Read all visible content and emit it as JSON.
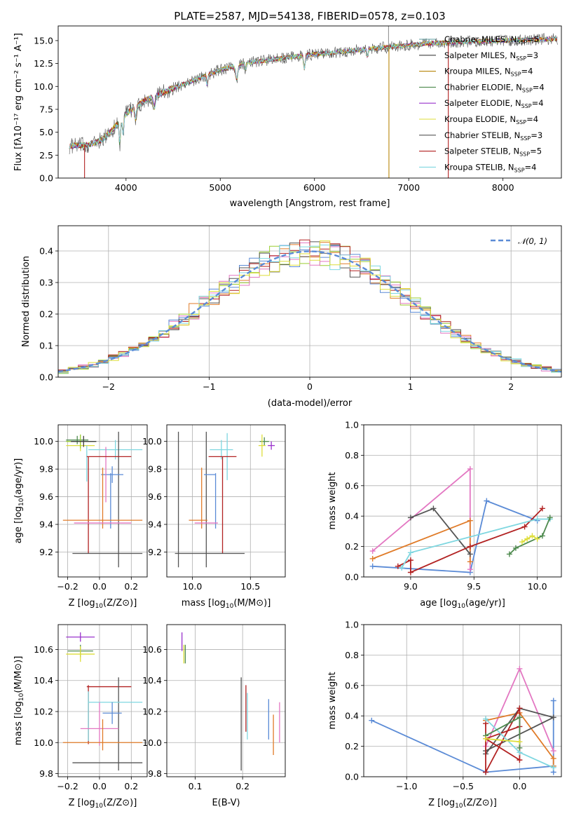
{
  "colors": {
    "ChM": "#5f9ea0",
    "SaM": "#3f3f3f",
    "KrM": "#b8860b",
    "ChE": "#4e8a4e",
    "SaE": "#9932cc",
    "KrE": "#dede3a",
    "ChS": "#555555",
    "SaS": "#b22222",
    "KrS": "#7fd7e0",
    "gauss": "#5b8bd6"
  },
  "chart_data": [
    {
      "id": "spectrum",
      "type": "line",
      "title": "PLATE=2587, MJD=54138, FIBERID=0578, z=0.103",
      "xlabel": "wavelength [Angstrom, rest frame]",
      "ylabel": "Flux [fλ10⁻¹⁷ erg cm⁻² s⁻¹ A⁻¹]",
      "xlim": [
        3280,
        8620
      ],
      "ylim": [
        0,
        16.6
      ],
      "xticks": [
        4000,
        5000,
        6000,
        7000,
        8000
      ],
      "yticks": [
        0.0,
        2.5,
        5.0,
        7.5,
        10.0,
        12.5,
        15.0
      ],
      "grid": false,
      "legend_position": "top-right",
      "continuum_x": [
        3400,
        3600,
        3750,
        3850,
        4000,
        4200,
        4500,
        4800,
        5000,
        5300,
        5600,
        5900,
        6200,
        6500,
        6800,
        7100,
        7400,
        7700,
        8000,
        8300,
        8580
      ],
      "continuum_y": [
        3.5,
        3.6,
        4.2,
        5.2,
        7.0,
        8.5,
        9.8,
        11.0,
        11.8,
        12.6,
        13.0,
        13.4,
        13.7,
        14.0,
        14.3,
        14.6,
        14.8,
        14.9,
        15.0,
        15.1,
        15.2
      ],
      "series": [
        {
          "name": "Chrabrier MILES, N_SSP=5",
          "label_main": "Chabrier MILES, N",
          "label_sub": "SSP",
          "label_tail": "=5",
          "color_key": "ChM"
        },
        {
          "name": "Salpeter MILES, N_SSP=3",
          "label_main": "Salpeter MILES, N",
          "label_sub": "SSP",
          "label_tail": "=3",
          "color_key": "SaM"
        },
        {
          "name": "Kroupa MILES, N_SSP=4",
          "label_main": "Kroupa MILES, N",
          "label_sub": "SSP",
          "label_tail": "=4",
          "color_key": "KrM"
        },
        {
          "name": "Chabrier ELODIE, N_SSP=4",
          "label_main": "Chabrier ELODIE, N",
          "label_sub": "SSP",
          "label_tail": "=4",
          "color_key": "ChE"
        },
        {
          "name": "Salpeter ELODIE, N_SSP=4",
          "label_main": "Salpeter ELODIE, N",
          "label_sub": "SSP",
          "label_tail": "=4",
          "color_key": "SaE"
        },
        {
          "name": "Kroupa ELODIE, N_SSP=4",
          "label_main": "Kroupa ELODIE, N",
          "label_sub": "SSP",
          "label_tail": "=4",
          "color_key": "KrE"
        },
        {
          "name": "Chabrier STELIB, N_SSP=3",
          "label_main": "Chabrier STELIB, N",
          "label_sub": "SSP",
          "label_tail": "=3",
          "color_key": "ChS"
        },
        {
          "name": "Salpeter STELIB, N_SSP=5",
          "label_main": "Salpeter STELIB, N",
          "label_sub": "SSP",
          "label_tail": "=5",
          "color_key": "SaS"
        },
        {
          "name": "Kroupa STELIB, N_SSP=4",
          "label_main": "Kroupa STELIB, N",
          "label_sub": "SSP",
          "label_tail": "=4",
          "color_key": "KrS"
        }
      ],
      "spikes": [
        {
          "x": 6790,
          "color_key": "KrM"
        },
        {
          "x": 7420,
          "color_key": "SaS"
        },
        {
          "x": 3560,
          "color_key": "SaS"
        }
      ]
    },
    {
      "id": "residuals",
      "type": "bar",
      "xlabel": "(data-model)/error",
      "ylabel": "Normed distribution",
      "xlim": [
        -2.5,
        2.5
      ],
      "ylim": [
        0,
        0.48
      ],
      "xticks": [
        -2,
        -1,
        0,
        1,
        2
      ],
      "xticklabels": [
        "−2",
        "−1",
        "0",
        "1",
        "2"
      ],
      "yticks": [
        0.0,
        0.1,
        0.2,
        0.3,
        0.4
      ],
      "grid": true,
      "legend_position": "top-right",
      "gauss_label": "𝒩(0, 1)",
      "bin_width": 0.1,
      "hist_colors": [
        "#e07b28",
        "#9acd32",
        "#e377c2",
        "#5b8bd6",
        "#555555",
        "#b22222",
        "#7fd7e0",
        "#dede3a"
      ]
    },
    {
      "id": "age-vs-Z",
      "type": "scatter",
      "xlabel_main": "Z [log",
      "xlabel_sub": "10",
      "xlabel_tail": "(Z/Z⊙)]",
      "ylabel_main": "age  [log",
      "ylabel_sub": "10",
      "ylabel_tail": "(age/yr)]",
      "xlim": [
        -0.26,
        0.3
      ],
      "ylim": [
        9.02,
        10.12
      ],
      "xticks": [
        -0.2,
        0.0,
        0.2
      ],
      "xticklabels": [
        "−0.2",
        "0.0",
        "0.2"
      ],
      "yticks": [
        9.2,
        9.4,
        9.6,
        9.8,
        10.0
      ],
      "grid": true,
      "points": [
        {
          "x": -0.14,
          "y": 10.01,
          "xerr": 0.07,
          "yerr": 0.03,
          "color_key": "ChE"
        },
        {
          "x": -0.12,
          "y": 9.97,
          "xerr": 0.09,
          "yerr": 0.04,
          "color_key": "KrE"
        },
        {
          "x": -0.12,
          "y": 10.0,
          "xerr": 0.09,
          "yerr": 0.05,
          "color": "#9acd32"
        },
        {
          "x": -0.1,
          "y": 10.0,
          "xerr": 0.08,
          "yerr": 0.04,
          "color_key": "SaM"
        },
        {
          "x": 0.1,
          "y": 9.94,
          "xerr": 0.17,
          "yerr": 0.07,
          "color_key": "KrS"
        },
        {
          "x": 0.12,
          "y": 9.58,
          "xerr": 0.0,
          "yerr": 0.49,
          "color_key": "ChS"
        },
        {
          "x": -0.08,
          "y": 9.84,
          "xerr": 0.0,
          "yerr": 0.13,
          "color_key": "KrS"
        },
        {
          "x": 0.08,
          "y": 9.76,
          "xerr": 0.07,
          "yerr": 0.06,
          "color": "#5b8bd6"
        },
        {
          "x": 0.02,
          "y": 9.59,
          "xerr": 0.0,
          "yerr": 0.22,
          "color": "#e07b28"
        },
        {
          "x": 0.07,
          "y": 9.57,
          "xerr": 0.0,
          "yerr": 0.2,
          "color": "#5b8bd6"
        },
        {
          "x": 0.04,
          "y": 9.76,
          "xerr": 0.0,
          "yerr": 0.2,
          "color": "#e377c2"
        },
        {
          "x": 0.06,
          "y": 9.89,
          "xerr": 0.14,
          "yerr": 0.0,
          "color_key": "SaS"
        },
        {
          "x": -0.07,
          "y": 9.54,
          "xerr": 0.0,
          "yerr": 0.35,
          "color_key": "SaS"
        },
        {
          "x": 0.02,
          "y": 9.43,
          "xerr": 0.25,
          "yerr": 0.0,
          "color": "#e07b28"
        },
        {
          "x": 0.02,
          "y": 9.41,
          "xerr": 0.18,
          "yerr": 0.0,
          "color": "#e377c2"
        },
        {
          "x": 0.05,
          "y": 9.19,
          "xerr": 0.22,
          "yerr": 0.0,
          "color_key": "ChS"
        }
      ]
    },
    {
      "id": "age-vs-mass",
      "type": "scatter",
      "xlabel_main": "mass [log",
      "xlabel_sub": "10",
      "xlabel_tail": "(M/M⊙)]",
      "xlim": [
        9.78,
        10.8
      ],
      "ylim": [
        9.02,
        10.12
      ],
      "xticks": [
        10.0,
        10.5
      ],
      "xticklabels": [
        "10.0",
        "10.5"
      ],
      "yticks": [
        9.2,
        9.4,
        9.6,
        9.8,
        10.0
      ],
      "grid": true,
      "points": [
        {
          "x": 10.62,
          "y": 10.0,
          "xerr": 0.04,
          "yerr": 0.03,
          "color_key": "ChE"
        },
        {
          "x": 10.6,
          "y": 9.97,
          "xerr": 0.03,
          "yerr": 0.08,
          "color_key": "KrE"
        },
        {
          "x": 10.68,
          "y": 9.97,
          "xerr": 0.03,
          "yerr": 0.03,
          "color_key": "SaE"
        },
        {
          "x": 10.25,
          "y": 9.94,
          "xerr": 0.1,
          "yerr": 0.07,
          "color_key": "KrS"
        },
        {
          "x": 10.3,
          "y": 9.89,
          "xerr": 0.0,
          "yerr": 0.17,
          "color_key": "KrS"
        },
        {
          "x": 10.12,
          "y": 9.58,
          "xerr": 0.0,
          "yerr": 0.49,
          "color_key": "ChS"
        },
        {
          "x": 10.15,
          "y": 9.76,
          "xerr": 0.05,
          "yerr": 0.0,
          "color": "#5b8bd6"
        },
        {
          "x": 10.2,
          "y": 9.57,
          "xerr": 0.0,
          "yerr": 0.2,
          "color": "#5b8bd6"
        },
        {
          "x": 10.26,
          "y": 9.89,
          "xerr": 0.12,
          "yerr": 0.0,
          "color_key": "SaS"
        },
        {
          "x": 10.26,
          "y": 9.54,
          "xerr": 0.0,
          "yerr": 0.35,
          "color_key": "SaS"
        },
        {
          "x": 10.05,
          "y": 9.43,
          "xerr": 0.08,
          "yerr": 0.0,
          "color": "#e07b28"
        },
        {
          "x": 10.08,
          "y": 9.59,
          "xerr": 0.0,
          "yerr": 0.22,
          "color": "#e07b28"
        },
        {
          "x": 10.12,
          "y": 9.41,
          "xerr": 0.1,
          "yerr": 0.0,
          "color": "#e377c2"
        },
        {
          "x": 10.15,
          "y": 9.19,
          "xerr": 0.3,
          "yerr": 0.0,
          "color_key": "ChS"
        },
        {
          "x": 9.88,
          "y": 9.58,
          "xerr": 0.0,
          "yerr": 0.49,
          "color_key": "ChS"
        }
      ]
    },
    {
      "id": "massweight-vs-age",
      "type": "line",
      "xlabel_main": "age  [log",
      "xlabel_sub": "10",
      "xlabel_tail": "(age/yr)]",
      "ylabel": "mass weight",
      "xlim": [
        8.63,
        10.19
      ],
      "ylim": [
        0,
        1.0
      ],
      "xticks": [
        9.0,
        9.5,
        10.0
      ],
      "xticklabels": [
        "9.0",
        "9.5",
        "10.0"
      ],
      "yticks": [
        0.0,
        0.2,
        0.4,
        0.6,
        0.8,
        1.0
      ],
      "grid": true,
      "series": [
        {
          "color": "#5b8bd6",
          "x": [
            8.7,
            9.47,
            9.6,
            10.0
          ],
          "y": [
            0.07,
            0.03,
            0.5,
            0.37
          ]
        },
        {
          "color": "#e377c2",
          "x": [
            8.7,
            9.47,
            9.47
          ],
          "y": [
            0.17,
            0.71,
            0.05
          ]
        },
        {
          "color": "#e07b28",
          "x": [
            8.7,
            9.47,
            9.47
          ],
          "y": [
            0.12,
            0.37,
            0.1
          ]
        },
        {
          "color": "#555555",
          "x": [
            9.0,
            9.18,
            9.47
          ],
          "y": [
            0.39,
            0.45,
            0.15
          ]
        },
        {
          "color": "#b22222",
          "x": [
            8.9,
            9.0,
            9.0,
            9.47,
            9.9,
            10.04
          ],
          "y": [
            0.07,
            0.11,
            0.03,
            0.2,
            0.33,
            0.45
          ]
        },
        {
          "color": "#7fd7e0",
          "x": [
            8.93,
            9.0,
            10.0,
            10.1
          ],
          "y": [
            0.06,
            0.16,
            0.38,
            0.38
          ]
        },
        {
          "color": "#4e8a4e",
          "x": [
            9.78,
            9.83,
            10.04,
            10.1
          ],
          "y": [
            0.15,
            0.19,
            0.27,
            0.39
          ]
        },
        {
          "color": "#dede3a",
          "x": [
            9.88,
            9.92,
            9.96,
            10.0
          ],
          "y": [
            0.23,
            0.25,
            0.27,
            0.25
          ]
        }
      ]
    },
    {
      "id": "mass-vs-Z",
      "type": "scatter",
      "xlabel_main": "Z [log",
      "xlabel_sub": "10",
      "xlabel_tail": "(Z/Z⊙)]",
      "ylabel_main": "mass [log",
      "ylabel_sub": "10",
      "ylabel_tail": "(M/M⊙)]",
      "xlim": [
        -0.26,
        0.3
      ],
      "ylim": [
        9.78,
        10.76
      ],
      "xticks": [
        -0.2,
        0.0,
        0.2
      ],
      "xticklabels": [
        "−0.2",
        "0.0",
        "0.2"
      ],
      "yticks": [
        9.8,
        10.0,
        10.2,
        10.4,
        10.6
      ],
      "grid": true,
      "points": [
        {
          "x": -0.12,
          "y": 10.68,
          "xerr": 0.09,
          "yerr": 0.03,
          "color_key": "SaE"
        },
        {
          "x": -0.12,
          "y": 10.59,
          "xerr": 0.08,
          "yerr": 0.04,
          "color_key": "ChE"
        },
        {
          "x": -0.12,
          "y": 10.57,
          "xerr": 0.09,
          "yerr": 0.05,
          "color_key": "KrE"
        },
        {
          "x": 0.06,
          "y": 10.36,
          "xerr": 0.14,
          "yerr": 0.0,
          "color_key": "SaS"
        },
        {
          "x": -0.07,
          "y": 10.18,
          "xerr": 0.0,
          "yerr": 0.19,
          "color_key": "SaS"
        },
        {
          "x": 0.12,
          "y": 10.12,
          "xerr": 0.0,
          "yerr": 0.3,
          "color_key": "ChS"
        },
        {
          "x": 0.1,
          "y": 10.26,
          "xerr": 0.17,
          "yerr": 0.0,
          "color_key": "KrS"
        },
        {
          "x": -0.07,
          "y": 10.17,
          "xerr": 0.0,
          "yerr": 0.16,
          "color_key": "KrS"
        },
        {
          "x": 0.08,
          "y": 10.19,
          "xerr": 0.06,
          "yerr": 0.07,
          "color": "#5b8bd6"
        },
        {
          "x": 0.0,
          "y": 10.09,
          "xerr": 0.12,
          "yerr": 0.0,
          "color": "#e377c2"
        },
        {
          "x": 0.0,
          "y": 10.12,
          "xerr": 0.0,
          "yerr": 0.14,
          "color": "#e377c2"
        },
        {
          "x": 0.02,
          "y": 10.0,
          "xerr": 0.25,
          "yerr": 0.0,
          "color": "#e07b28"
        },
        {
          "x": 0.02,
          "y": 10.05,
          "xerr": 0.0,
          "yerr": 0.1,
          "color": "#e07b28"
        },
        {
          "x": 0.05,
          "y": 9.87,
          "xerr": 0.22,
          "yerr": 0.0,
          "color_key": "ChS"
        }
      ]
    },
    {
      "id": "mass-vs-EBV",
      "type": "scatter",
      "xlabel": "E(B-V)",
      "xlim": [
        0.04,
        0.29
      ],
      "ylim": [
        9.78,
        10.76
      ],
      "xticks": [
        0.1,
        0.2
      ],
      "xticklabels": [
        "0.1",
        "0.2"
      ],
      "yticks": [
        9.8,
        10.0,
        10.2,
        10.4,
        10.6
      ],
      "grid": true,
      "points": [
        {
          "x": 0.072,
          "y": 10.65,
          "xerr": 0.0,
          "yerr": 0.06,
          "color_key": "SaE"
        },
        {
          "x": 0.076,
          "y": 10.57,
          "xerr": 0.0,
          "yerr": 0.06,
          "color_key": "KrE"
        },
        {
          "x": 0.079,
          "y": 10.57,
          "xerr": 0.0,
          "yerr": 0.06,
          "color_key": "ChE"
        },
        {
          "x": 0.197,
          "y": 10.12,
          "xerr": 0.0,
          "yerr": 0.3,
          "color_key": "ChS"
        },
        {
          "x": 0.207,
          "y": 10.22,
          "xerr": 0.0,
          "yerr": 0.15,
          "color_key": "SaS"
        },
        {
          "x": 0.21,
          "y": 10.17,
          "xerr": 0.0,
          "yerr": 0.15,
          "color_key": "KrS"
        },
        {
          "x": 0.255,
          "y": 10.15,
          "xerr": 0.0,
          "yerr": 0.13,
          "color": "#5b8bd6"
        },
        {
          "x": 0.265,
          "y": 10.05,
          "xerr": 0.0,
          "yerr": 0.13,
          "color": "#e07b28"
        },
        {
          "x": 0.278,
          "y": 10.13,
          "xerr": 0.0,
          "yerr": 0.13,
          "color": "#e377c2"
        }
      ]
    },
    {
      "id": "massweight-vs-Z",
      "type": "line",
      "xlabel_main": "Z [log",
      "xlabel_sub": "10",
      "xlabel_tail": "(Z/Z⊙)]",
      "ylabel": "mass weight",
      "xlim": [
        -1.38,
        0.37
      ],
      "ylim": [
        0,
        1.0
      ],
      "xticks": [
        -1.0,
        -0.5,
        0.0
      ],
      "xticklabels": [
        "−1.0",
        "−0.5",
        "0.0"
      ],
      "yticks": [
        0.0,
        0.2,
        0.4,
        0.6,
        0.8,
        1.0
      ],
      "grid": true,
      "series": [
        {
          "color": "#5b8bd6",
          "x": [
            -1.31,
            -0.3,
            0.3,
            0.3,
            0.3
          ],
          "y": [
            0.37,
            0.03,
            0.07,
            0.5,
            0.03
          ]
        },
        {
          "color": "#e377c2",
          "x": [
            -0.3,
            0.0,
            0.3
          ],
          "y": [
            0.2,
            0.71,
            0.17
          ]
        },
        {
          "color": "#e07b28",
          "x": [
            -0.3,
            0.0,
            0.3,
            0.3
          ],
          "y": [
            0.37,
            0.42,
            0.12,
            0.07
          ]
        },
        {
          "color": "#555555",
          "x": [
            -0.3,
            0.0,
            0.3,
            -0.3
          ],
          "y": [
            0.15,
            0.45,
            0.39,
            0.17
          ]
        },
        {
          "color": "#b22222",
          "x": [
            -0.3,
            -0.3,
            0.0,
            0.0,
            -0.3,
            0.0
          ],
          "y": [
            0.35,
            0.03,
            0.45,
            0.11,
            0.25,
            0.33
          ]
        },
        {
          "color": "#7fd7e0",
          "x": [
            -0.3,
            0.0,
            0.3
          ],
          "y": [
            0.38,
            0.16,
            0.06
          ]
        },
        {
          "color": "#4e8a4e",
          "x": [
            -0.3,
            0.0,
            0.0
          ],
          "y": [
            0.27,
            0.39,
            0.19
          ]
        },
        {
          "color": "#dede3a",
          "x": [
            -0.3,
            0.0
          ],
          "y": [
            0.25,
            0.23
          ]
        }
      ]
    }
  ]
}
